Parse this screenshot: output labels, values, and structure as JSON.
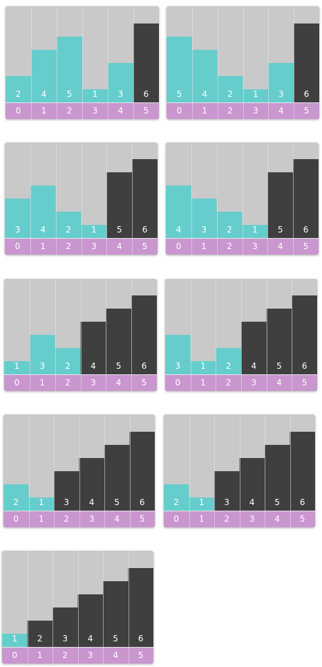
{
  "colors": {
    "panel_background": "#c9c9c9",
    "unsorted_bar": "#66cdcd",
    "sorted_bar": "#3f3f3f",
    "index_strip": "#c996cf",
    "divider": "#e6e6e6",
    "label_text": "#ffffff"
  },
  "chart_data": [
    {
      "type": "bar",
      "categories": [
        "0",
        "1",
        "2",
        "3",
        "4",
        "5"
      ],
      "values": [
        2,
        4,
        5,
        1,
        3,
        6
      ],
      "sorted_count": 1,
      "ylim": [
        0,
        6
      ]
    },
    {
      "type": "bar",
      "categories": [
        "0",
        "1",
        "2",
        "3",
        "4",
        "5"
      ],
      "values": [
        5,
        4,
        2,
        1,
        3,
        6
      ],
      "sorted_count": 1,
      "ylim": [
        0,
        6
      ]
    },
    {
      "type": "bar",
      "categories": [
        "0",
        "1",
        "2",
        "3",
        "4",
        "5"
      ],
      "values": [
        3,
        4,
        2,
        1,
        5,
        6
      ],
      "sorted_count": 2,
      "ylim": [
        0,
        6
      ]
    },
    {
      "type": "bar",
      "categories": [
        "0",
        "1",
        "2",
        "3",
        "4",
        "5"
      ],
      "values": [
        4,
        3,
        2,
        1,
        5,
        6
      ],
      "sorted_count": 2,
      "ylim": [
        0,
        6
      ]
    },
    {
      "type": "bar",
      "categories": [
        "0",
        "1",
        "2",
        "3",
        "4",
        "5"
      ],
      "values": [
        1,
        3,
        2,
        4,
        5,
        6
      ],
      "sorted_count": 3,
      "ylim": [
        0,
        6
      ]
    },
    {
      "type": "bar",
      "categories": [
        "0",
        "1",
        "2",
        "3",
        "4",
        "5"
      ],
      "values": [
        3,
        1,
        2,
        4,
        5,
        6
      ],
      "sorted_count": 3,
      "ylim": [
        0,
        6
      ]
    },
    {
      "type": "bar",
      "categories": [
        "0",
        "1",
        "2",
        "3",
        "4",
        "5"
      ],
      "values": [
        2,
        1,
        3,
        4,
        5,
        6
      ],
      "sorted_count": 4,
      "ylim": [
        0,
        6
      ]
    },
    {
      "type": "bar",
      "categories": [
        "0",
        "1",
        "2",
        "3",
        "4",
        "5"
      ],
      "values": [
        2,
        1,
        3,
        4,
        5,
        6
      ],
      "sorted_count": 4,
      "ylim": [
        0,
        6
      ]
    },
    {
      "type": "bar",
      "categories": [
        "0",
        "1",
        "2",
        "3",
        "4",
        "5"
      ],
      "values": [
        1,
        2,
        3,
        4,
        5,
        6
      ],
      "sorted_count": 5,
      "ylim": [
        0,
        6
      ]
    }
  ]
}
